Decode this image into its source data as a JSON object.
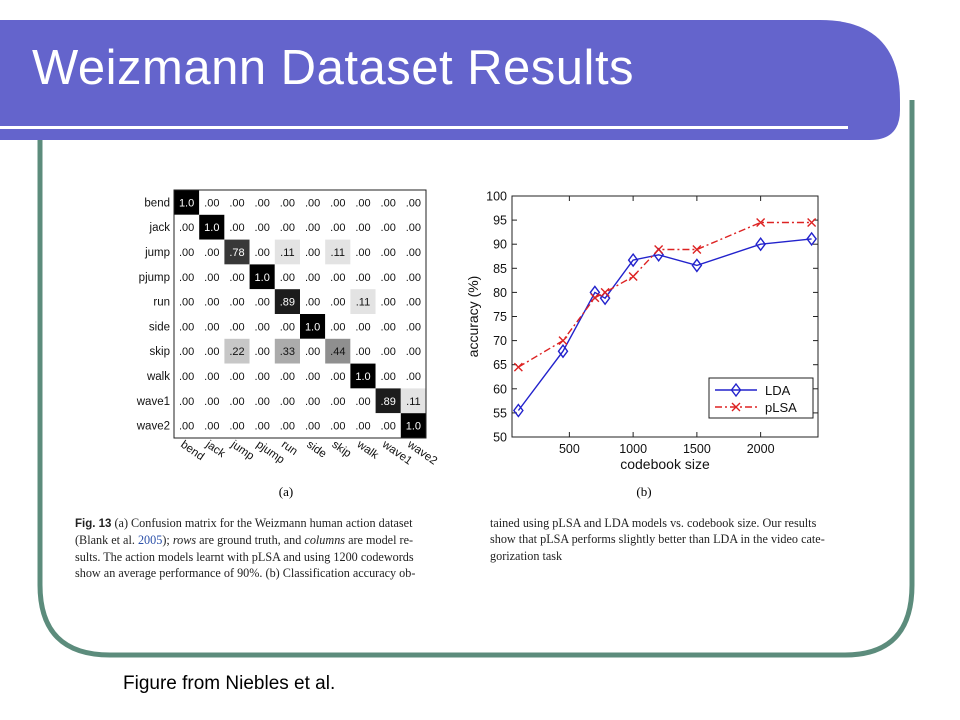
{
  "slide": {
    "title": "Weizmann Dataset Results",
    "credit": "Figure from Niebles et al.",
    "colors": {
      "title_band": "#6464cc",
      "frame": "#5c8c7c"
    }
  },
  "figure": {
    "panel_a_label": "(a)",
    "panel_b_label": "(b)",
    "caption": {
      "left": {
        "fig_label": "Fig. 13",
        "lines": [
          {
            "segs": [
              {
                "t": "Fig. 13",
                "b": true
              },
              {
                "t": "   (a) Confusion matrix for the Weizmann human action dataset"
              }
            ]
          },
          {
            "segs": [
              {
                "t": "(Blank et al. "
              },
              {
                "t": "2005",
                "c": "blue"
              },
              {
                "t": "); "
              },
              {
                "t": "rows",
                "i": true
              },
              {
                "t": " are ground truth, and "
              },
              {
                "t": "columns",
                "i": true
              },
              {
                "t": " are model re-"
              }
            ]
          },
          {
            "segs": [
              {
                "t": "sults. The action models learnt with pLSA and using 1200 codewords"
              }
            ]
          },
          {
            "segs": [
              {
                "t": "show an average performance of 90%. (b) Classification accuracy ob-"
              }
            ]
          }
        ]
      },
      "right": {
        "lines": [
          {
            "segs": [
              {
                "t": "tained using pLSA and LDA models vs. codebook size. Our results"
              }
            ]
          },
          {
            "segs": [
              {
                "t": "show that pLSA performs slightly better than LDA in the video cate-"
              }
            ]
          },
          {
            "segs": [
              {
                "t": "gorization task"
              }
            ]
          }
        ]
      }
    }
  },
  "chart_data": [
    {
      "type": "heatmap",
      "rows": [
        "bend",
        "jack",
        "jump",
        "pjump",
        "run",
        "side",
        "skip",
        "walk",
        "wave1",
        "wave2"
      ],
      "columns": [
        "bend",
        "jack",
        "jump",
        "pjump",
        "run",
        "side",
        "skip",
        "walk",
        "wave1",
        "wave2"
      ],
      "labels": [
        [
          "1.0",
          ".00",
          ".00",
          ".00",
          ".00",
          ".00",
          ".00",
          ".00",
          ".00",
          ".00"
        ],
        [
          ".00",
          "1.0",
          ".00",
          ".00",
          ".00",
          ".00",
          ".00",
          ".00",
          ".00",
          ".00"
        ],
        [
          ".00",
          ".00",
          ".78",
          ".00",
          ".11",
          ".00",
          ".11",
          ".00",
          ".00",
          ".00"
        ],
        [
          ".00",
          ".00",
          ".00",
          "1.0",
          ".00",
          ".00",
          ".00",
          ".00",
          ".00",
          ".00"
        ],
        [
          ".00",
          ".00",
          ".00",
          ".00",
          ".89",
          ".00",
          ".00",
          ".11",
          ".00",
          ".00"
        ],
        [
          ".00",
          ".00",
          ".00",
          ".00",
          ".00",
          "1.0",
          ".00",
          ".00",
          ".00",
          ".00"
        ],
        [
          ".00",
          ".00",
          ".22",
          ".00",
          ".33",
          ".00",
          ".44",
          ".00",
          ".00",
          ".00"
        ],
        [
          ".00",
          ".00",
          ".00",
          ".00",
          ".00",
          ".00",
          ".00",
          "1.0",
          ".00",
          ".00"
        ],
        [
          ".00",
          ".00",
          ".00",
          ".00",
          ".00",
          ".00",
          ".00",
          ".00",
          ".89",
          ".11"
        ],
        [
          ".00",
          ".00",
          ".00",
          ".00",
          ".00",
          ".00",
          ".00",
          ".00",
          ".00",
          "1.0"
        ]
      ],
      "values": [
        [
          1.0,
          0,
          0,
          0,
          0,
          0,
          0,
          0,
          0,
          0
        ],
        [
          0,
          1.0,
          0,
          0,
          0,
          0,
          0,
          0,
          0,
          0
        ],
        [
          0,
          0,
          0.78,
          0,
          0.11,
          0,
          0.11,
          0,
          0,
          0
        ],
        [
          0,
          0,
          0,
          1.0,
          0,
          0,
          0,
          0,
          0,
          0
        ],
        [
          0,
          0,
          0,
          0,
          0.89,
          0,
          0,
          0.11,
          0,
          0
        ],
        [
          0,
          0,
          0,
          0,
          0,
          1.0,
          0,
          0,
          0,
          0
        ],
        [
          0,
          0,
          0.22,
          0,
          0.33,
          0,
          0.44,
          0,
          0,
          0
        ],
        [
          0,
          0,
          0,
          0,
          0,
          0,
          0,
          1.0,
          0,
          0
        ],
        [
          0,
          0,
          0,
          0,
          0,
          0,
          0,
          0,
          0.89,
          0.11
        ],
        [
          0,
          0,
          0,
          0,
          0,
          0,
          0,
          0,
          0,
          1.0
        ]
      ]
    },
    {
      "type": "line",
      "xlabel": "codebook size",
      "ylabel": "accuracy (%)",
      "xlim": [
        50,
        2450
      ],
      "ylim": [
        50,
        100
      ],
      "xticks": [
        500,
        1000,
        1500,
        2000
      ],
      "yticks": [
        50,
        55,
        60,
        65,
        70,
        75,
        80,
        85,
        90,
        95,
        100
      ],
      "legend_position": "bottom-right",
      "series": [
        {
          "name": "LDA",
          "color": "#2222cc",
          "marker": "diamond",
          "line": "solid",
          "x": [
            100,
            450,
            700,
            780,
            1000,
            1200,
            1500,
            2000,
            2400
          ],
          "y": [
            55.5,
            67.8,
            80,
            78.8,
            86.7,
            87.8,
            85.6,
            90,
            91.1
          ]
        },
        {
          "name": "pLSA",
          "color": "#dd2222",
          "marker": "x",
          "line": "dashdot",
          "x": [
            100,
            450,
            700,
            780,
            1000,
            1200,
            1500,
            2000,
            2400
          ],
          "y": [
            64.5,
            70,
            78.9,
            80,
            83.3,
            88.9,
            88.9,
            94.5,
            94.5
          ]
        }
      ]
    }
  ]
}
